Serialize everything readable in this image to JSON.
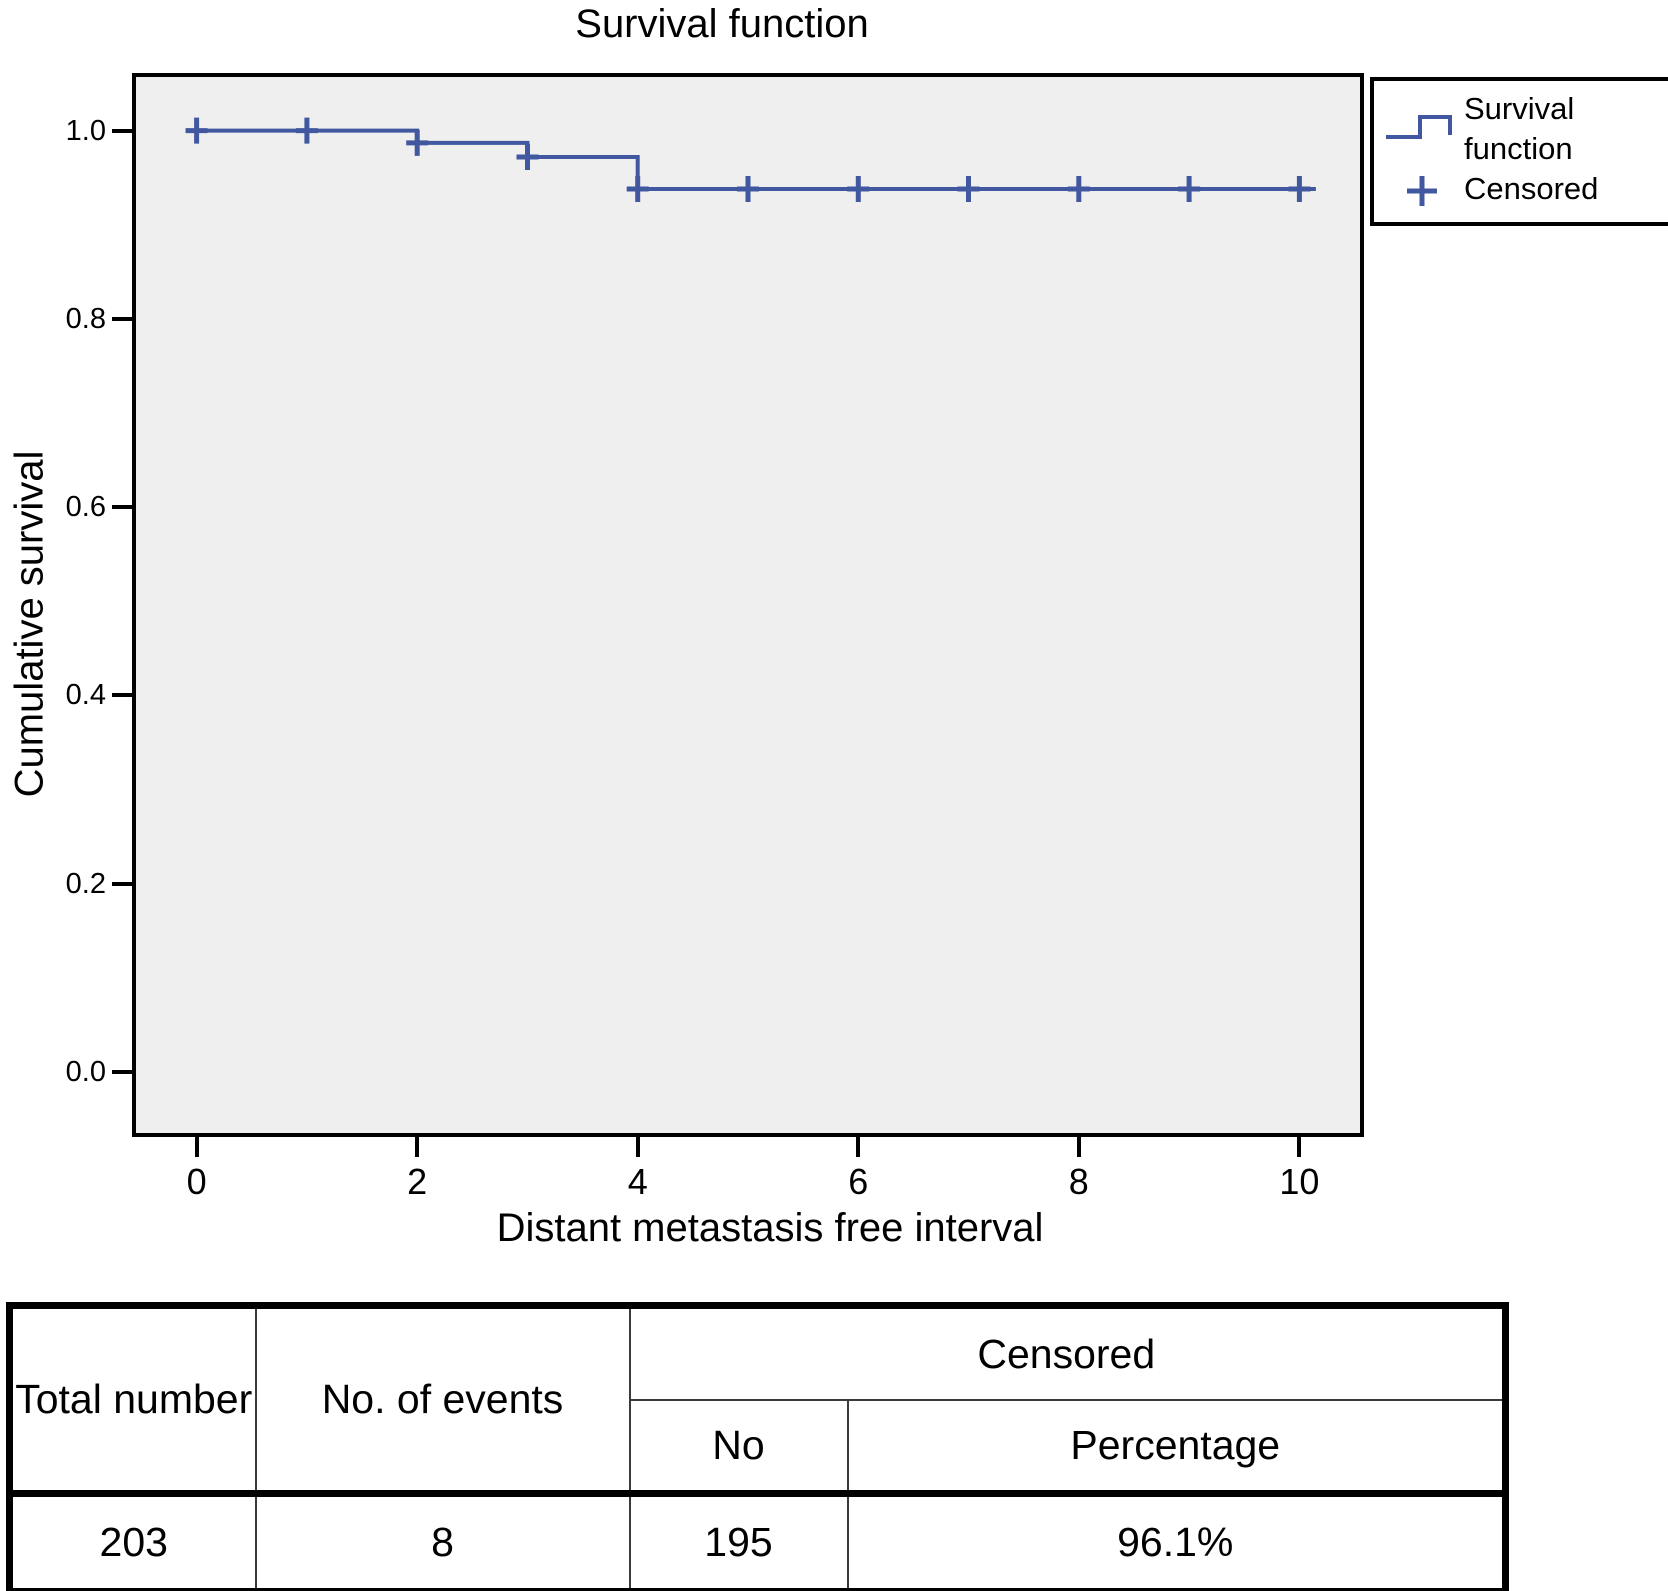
{
  "chart_data": {
    "type": "line",
    "subtype": "kaplan_meier_step",
    "title": "Survival function",
    "xlabel": "Distant metastasis free interval",
    "ylabel": "Cumulative survival",
    "xlim": [
      -0.55,
      10.55
    ],
    "ylim": [
      -0.065,
      1.057
    ],
    "xticks": [
      {
        "v": 0,
        "label": "0"
      },
      {
        "v": 2,
        "label": "2"
      },
      {
        "v": 4,
        "label": "4"
      },
      {
        "v": 6,
        "label": "6"
      },
      {
        "v": 8,
        "label": "8"
      },
      {
        "v": 10,
        "label": "10"
      }
    ],
    "yticks": [
      {
        "v": 0.0,
        "label": "0.0"
      },
      {
        "v": 0.2,
        "label": "0.2"
      },
      {
        "v": 0.4,
        "label": "0.4"
      },
      {
        "v": 0.6,
        "label": "0.6"
      },
      {
        "v": 0.8,
        "label": "0.8"
      },
      {
        "v": 1.0,
        "label": "1.0"
      }
    ],
    "grid": false,
    "plot_bg": "#efefef",
    "line_color": "#4157a0",
    "legend_position": "outside-top-right",
    "legend_items": [
      {
        "label": "Survival function",
        "marker": "step-line"
      },
      {
        "label": "Censored",
        "marker": "plus"
      }
    ],
    "series": [
      {
        "name": "Survival function",
        "step_points": [
          [
            -0.1,
            1.0
          ],
          [
            2,
            1.0
          ],
          [
            2,
            0.987
          ],
          [
            3,
            0.987
          ],
          [
            3,
            0.972
          ],
          [
            4,
            0.972
          ],
          [
            4,
            0.938
          ],
          [
            10.15,
            0.938
          ]
        ]
      }
    ],
    "censored_points": [
      [
        0,
        1.0
      ],
      [
        1,
        1.0
      ],
      [
        2,
        0.987
      ],
      [
        3,
        0.972
      ],
      [
        4,
        0.938
      ],
      [
        5,
        0.938
      ],
      [
        6,
        0.938
      ],
      [
        7,
        0.938
      ],
      [
        8,
        0.938
      ],
      [
        9,
        0.938
      ],
      [
        10,
        0.938
      ]
    ]
  },
  "summary_table": {
    "headers": {
      "total_number": "Total number",
      "no_of_events": "No. of events",
      "censored": "Censored",
      "no": "No",
      "percentage": "Percentage"
    },
    "values": {
      "total_number": "203",
      "no_of_events": "8",
      "censored_no": "195",
      "censored_percentage": "96.1%"
    }
  }
}
